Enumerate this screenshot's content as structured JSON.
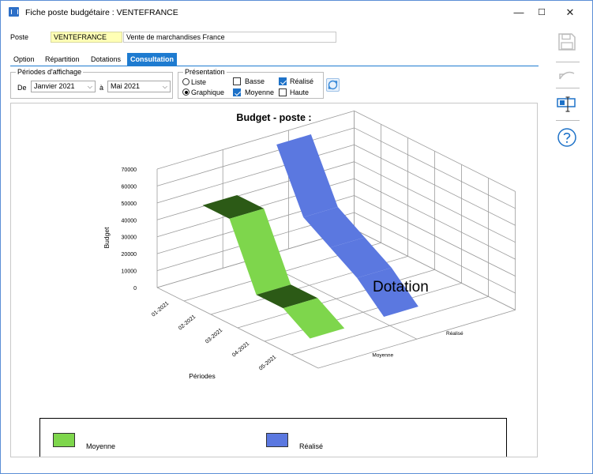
{
  "window": {
    "title": "Fiche poste budgétaire : VENTEFRANCE",
    "minimize": "—",
    "maximize": "☐",
    "close": "✕"
  },
  "poste": {
    "label": "Poste",
    "code": "VENTEFRANCE",
    "libelle": "Vente de marchandises France"
  },
  "tabs": [
    {
      "label": "Option",
      "active": false
    },
    {
      "label": "Répartition",
      "active": false
    },
    {
      "label": "Dotations",
      "active": false
    },
    {
      "label": "Consultation",
      "active": true
    }
  ],
  "periodes": {
    "title": "Périodes d'affichage",
    "de_label": "De",
    "de_value": "Janvier 2021",
    "a_label": "à",
    "a_value": "Mai 2021"
  },
  "presentation": {
    "title": "Présentation",
    "liste": {
      "label": "Liste",
      "checked": false
    },
    "graphique": {
      "label": "Graphique",
      "checked": true
    },
    "basse": {
      "label": "Basse",
      "checked": false
    },
    "moyenne": {
      "label": "Moyenne",
      "checked": true
    },
    "realise": {
      "label": "Réalisé",
      "checked": true
    },
    "haute": {
      "label": "Haute",
      "checked": false
    }
  },
  "chart_data": {
    "type": "line",
    "title": "Budget - poste :",
    "ylabel": "Budget",
    "xlabel": "Périodes",
    "side_label": "Dotation",
    "y_ticks": [
      "0",
      "10000",
      "20000",
      "30000",
      "40000",
      "50000",
      "60000",
      "70000"
    ],
    "ylim": [
      0,
      70000
    ],
    "categories": [
      "01-2021",
      "02-2021",
      "03-2021",
      "04-2021",
      "05-2021"
    ],
    "depth_categories": [
      "Réalisé",
      "Moyenne"
    ],
    "series": [
      {
        "name": "Moyenne",
        "color": "#7ed64c",
        "values": [
          47000,
          47000,
          10000,
          10000,
          0
        ]
      },
      {
        "name": "Réalisé",
        "color": "#5b78e0",
        "values": [
          70000,
          35000,
          25000,
          15000,
          0
        ]
      }
    ],
    "legend": [
      {
        "label": "Moyenne",
        "color": "#7ed64c"
      },
      {
        "label": "Réalisé",
        "color": "#5b78e0"
      }
    ],
    "legend_position": "bottom"
  },
  "icons": {
    "save": "save-icon",
    "undo": "undo-icon",
    "view": "screen-icon",
    "help": "help-icon"
  }
}
